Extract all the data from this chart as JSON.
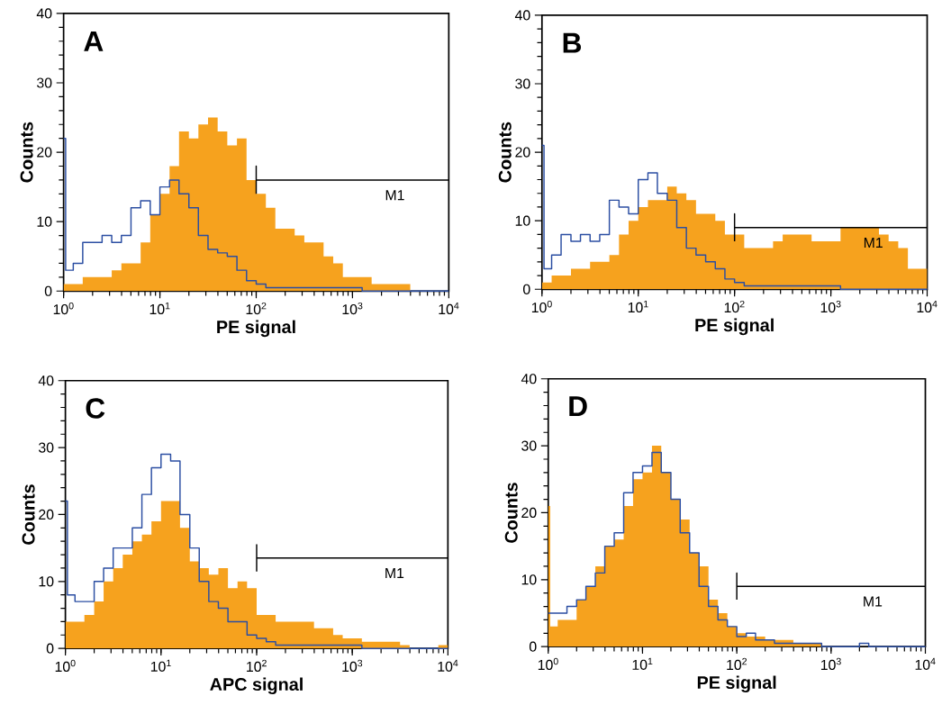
{
  "chart_data": [
    {
      "type": "area",
      "title": "A",
      "xlabel": "PE signal",
      "ylabel": "Counts",
      "log": "x",
      "xlim": [
        1,
        10000
      ],
      "ylim": [
        0,
        40
      ],
      "xticks": [
        {
          "value": 1,
          "label": "10$^{0}$"
        },
        {
          "value": 10,
          "label": "10$^{1}$"
        },
        {
          "value": 100,
          "label": "10$^{2}$"
        },
        {
          "value": 1000,
          "label": "10$^{3}$"
        },
        {
          "value": 10000,
          "label": "10$^{4}$"
        }
      ],
      "yticks": [
        0,
        10,
        20,
        30,
        40
      ],
      "annotations": [
        "M1"
      ],
      "series": [
        {
          "type": "line",
          "color": "#000000",
          "x": [
            100,
            100,
            100,
            10000
          ],
          "values": [
            14,
            18,
            16,
            16
          ]
        },
        {
          "color": "#f6a21e",
          "x": [
            1,
            1.26,
            1.58,
            2,
            2.51,
            3.16,
            3.98,
            5.01,
            6.31,
            7.94,
            10,
            12.6,
            15.8,
            20,
            25.1,
            31.6,
            39.8,
            50.1,
            63.1,
            79.4,
            100,
            126,
            158,
            200,
            251,
            316,
            398,
            501,
            631,
            794,
            1000,
            1260,
            1580,
            2000,
            2510,
            3160,
            3980,
            5010,
            6310,
            7940,
            10000
          ],
          "values": [
            1,
            1,
            2,
            2,
            2,
            3,
            4,
            4,
            7,
            11,
            14,
            18,
            23,
            22,
            24,
            25,
            23,
            21,
            22,
            16,
            14,
            12,
            9,
            9,
            8,
            7,
            7,
            5,
            4,
            2,
            2,
            2,
            1,
            1,
            1,
            1,
            0,
            0,
            0,
            0,
            0
          ]
        },
        {
          "type": "step",
          "color": "#2b4ea2",
          "x": [
            1,
            1.05,
            1.26,
            1.58,
            2,
            2.51,
            3.16,
            3.98,
            5.01,
            6.31,
            7.94,
            10,
            12.6,
            15.8,
            20,
            25.1,
            31.6,
            39.8,
            50.1,
            63.1,
            79.4,
            100,
            126,
            158,
            200,
            251,
            316,
            398,
            501,
            631,
            794,
            1000,
            1260,
            1580,
            2000,
            2510,
            3160,
            3980,
            5010,
            6310,
            7940,
            10000
          ],
          "values": [
            22,
            3,
            4,
            7,
            7,
            8,
            7,
            8,
            12,
            13,
            11,
            15,
            16,
            14,
            12,
            8,
            6,
            5.5,
            5,
            3,
            1.5,
            1,
            0.5,
            0.5,
            0.5,
            0.5,
            0.5,
            0.5,
            0.5,
            0.5,
            0.5,
            0.5,
            0,
            0,
            0,
            0,
            0,
            0,
            0,
            0,
            0,
            0
          ]
        }
      ]
    },
    {
      "type": "area",
      "title": "B",
      "xlabel": "PE signal",
      "ylabel": "Counts",
      "log": "x",
      "xlim": [
        1,
        10000
      ],
      "ylim": [
        0,
        40
      ],
      "xticks": [
        {
          "value": 1,
          "label": "10$^{0}$"
        },
        {
          "value": 10,
          "label": "10$^{1}$"
        },
        {
          "value": 100,
          "label": "10$^{2}$"
        },
        {
          "value": 1000,
          "label": "10$^{3}$"
        },
        {
          "value": 10000,
          "label": "10$^{4}$"
        }
      ],
      "yticks": [
        0,
        10,
        20,
        30,
        40
      ],
      "annotations": [
        "M1"
      ],
      "series": [
        {
          "type": "line",
          "color": "#000000",
          "x": [
            100,
            100,
            100,
            10000
          ],
          "values": [
            7,
            11,
            9,
            9
          ]
        },
        {
          "color": "#f6a21e",
          "x": [
            1,
            1.26,
            1.58,
            2,
            2.51,
            3.16,
            3.98,
            5.01,
            6.31,
            7.94,
            10,
            12.6,
            15.8,
            20,
            25.1,
            31.6,
            39.8,
            50.1,
            63.1,
            79.4,
            100,
            126,
            158,
            200,
            251,
            316,
            398,
            501,
            631,
            794,
            1000,
            1260,
            1580,
            2000,
            2510,
            3160,
            3980,
            5010,
            6310,
            7940,
            10000
          ],
          "values": [
            1,
            2,
            2,
            3,
            3,
            4,
            4,
            5,
            8,
            10,
            12,
            13,
            13,
            15,
            14,
            13,
            11,
            11,
            10,
            8,
            8,
            6,
            6,
            6,
            7,
            8,
            8,
            8,
            7,
            7,
            7,
            9,
            9,
            9,
            9,
            8,
            7,
            6,
            3,
            3,
            5
          ]
        },
        {
          "type": "step",
          "color": "#2b4ea2",
          "x": [
            1,
            1.05,
            1.26,
            1.58,
            2,
            2.51,
            3.16,
            3.98,
            5.01,
            6.31,
            7.94,
            10,
            12.6,
            15.8,
            20,
            25.1,
            31.6,
            39.8,
            50.1,
            63.1,
            79.4,
            100,
            126,
            158,
            200,
            251,
            316,
            398,
            501,
            631,
            794,
            1000,
            1260,
            1580,
            2000,
            2510,
            3160,
            3980,
            5010,
            6310,
            7940,
            10000
          ],
          "values": [
            21,
            3,
            5,
            8,
            7,
            8,
            7,
            8,
            13,
            12,
            11,
            16,
            17,
            14,
            13,
            9,
            6,
            5,
            4,
            3,
            1.5,
            1,
            0.5,
            0.5,
            0.5,
            0.5,
            0.5,
            0.5,
            0.5,
            0.5,
            0.5,
            0.5,
            0,
            0,
            0,
            0,
            0,
            0,
            0,
            0,
            0,
            0
          ]
        }
      ]
    },
    {
      "type": "area",
      "title": "C",
      "xlabel": "APC signal",
      "ylabel": "Counts",
      "log": "x",
      "xlim": [
        1,
        10000
      ],
      "ylim": [
        0,
        40
      ],
      "xticks": [
        {
          "value": 1,
          "label": "10$^{0}$"
        },
        {
          "value": 10,
          "label": "10$^{1}$"
        },
        {
          "value": 100,
          "label": "10$^{2}$"
        },
        {
          "value": 1000,
          "label": "10$^{3}$"
        },
        {
          "value": 10000,
          "label": "10$^{4}$"
        }
      ],
      "yticks": [
        0,
        10,
        20,
        30,
        40
      ],
      "annotations": [
        "M1"
      ],
      "series": [
        {
          "type": "line",
          "color": "#000000",
          "x": [
            100,
            100,
            100,
            10000
          ],
          "values": [
            11.5,
            15.5,
            13.5,
            13.5
          ]
        },
        {
          "color": "#f6a21e",
          "x": [
            1,
            1.26,
            1.58,
            2,
            2.51,
            3.16,
            3.98,
            5.01,
            6.31,
            7.94,
            10,
            12.6,
            15.8,
            20,
            25.1,
            31.6,
            39.8,
            50.1,
            63.1,
            79.4,
            100,
            126,
            158,
            200,
            251,
            316,
            398,
            501,
            631,
            794,
            1000,
            1260,
            1580,
            2000,
            2510,
            3160,
            3980,
            5010,
            6310,
            7940,
            10000
          ],
          "values": [
            4,
            4,
            5,
            7,
            10,
            12,
            14,
            16,
            17,
            19,
            22,
            22,
            18,
            13,
            12,
            11,
            12,
            9,
            10,
            9,
            5,
            5,
            4,
            4,
            4,
            4,
            3,
            3,
            2,
            1.5,
            1.5,
            1,
            1,
            1,
            1,
            0.5,
            0,
            0,
            0,
            0.5,
            0
          ]
        },
        {
          "type": "step",
          "color": "#2b4ea2",
          "x": [
            1,
            1.05,
            1.26,
            1.58,
            2,
            2.51,
            3.16,
            3.98,
            5.01,
            6.31,
            7.94,
            10,
            12.6,
            15.8,
            20,
            25.1,
            31.6,
            39.8,
            50.1,
            63.1,
            79.4,
            100,
            126,
            158,
            200,
            251,
            316,
            398,
            501,
            631,
            794,
            1000,
            1260,
            1580,
            2000,
            2510,
            3160,
            3980,
            5010,
            6310,
            7940,
            10000
          ],
          "values": [
            22,
            8,
            7,
            7,
            10,
            12,
            15,
            15,
            18,
            23,
            27,
            29,
            28,
            20,
            15,
            10,
            7,
            6,
            4,
            4,
            2,
            1.5,
            1,
            0.5,
            0.5,
            0.5,
            0.5,
            0.5,
            0.5,
            0.5,
            0.5,
            0.5,
            0,
            0,
            0,
            0,
            0,
            0,
            0,
            0,
            0,
            0
          ]
        }
      ]
    },
    {
      "type": "area",
      "title": "D",
      "xlabel": "PE signal",
      "ylabel": "Counts",
      "log": "x",
      "xlim": [
        1,
        10000
      ],
      "ylim": [
        0,
        40
      ],
      "xticks": [
        {
          "value": 1,
          "label": "10$^{0}$"
        },
        {
          "value": 10,
          "label": "10$^{1}$"
        },
        {
          "value": 100,
          "label": "10$^{2}$"
        },
        {
          "value": 1000,
          "label": "10$^{3}$"
        },
        {
          "value": 10000,
          "label": "10$^{4}$"
        }
      ],
      "yticks": [
        0,
        10,
        20,
        30,
        40
      ],
      "annotations": [
        "M1"
      ],
      "series": [
        {
          "type": "line",
          "color": "#000000",
          "x": [
            100,
            100,
            100,
            10000
          ],
          "values": [
            7,
            11,
            9,
            9
          ]
        },
        {
          "color": "#f6a21e",
          "x": [
            1,
            1.05,
            1.26,
            1.58,
            2,
            2.51,
            3.16,
            3.98,
            5.01,
            6.31,
            7.94,
            10,
            12.6,
            15.8,
            20,
            25.1,
            31.6,
            39.8,
            50.1,
            63.1,
            79.4,
            100,
            126,
            158,
            200,
            251,
            316,
            398,
            501,
            631,
            794,
            1000,
            1260,
            1580,
            2000,
            2510,
            3160,
            3980,
            5010,
            6310,
            7940,
            10000
          ],
          "values": [
            21,
            3,
            4,
            4,
            7,
            9,
            12,
            15,
            16,
            21,
            25,
            26,
            30,
            26,
            22,
            19,
            14,
            12,
            7,
            5,
            3,
            2,
            1.5,
            1.5,
            1,
            1,
            1,
            0.5,
            0.5,
            0.5,
            0,
            0,
            0,
            0,
            0,
            0,
            0,
            0,
            0,
            0,
            0,
            0.5
          ]
        },
        {
          "type": "step",
          "color": "#2b4ea2",
          "x": [
            1,
            1.26,
            1.58,
            2,
            2.51,
            3.16,
            3.98,
            5.01,
            6.31,
            7.94,
            10,
            12.6,
            15.8,
            20,
            25.1,
            31.6,
            39.8,
            50.1,
            63.1,
            79.4,
            100,
            126,
            158,
            200,
            251,
            316,
            398,
            501,
            631,
            794,
            1000,
            1260,
            1580,
            2000,
            2510,
            3160,
            3980,
            5010,
            6310,
            7940,
            10000
          ],
          "values": [
            5,
            5,
            6,
            7,
            9,
            11,
            15,
            17,
            23,
            26,
            27,
            29,
            26,
            22,
            17,
            14,
            9,
            6,
            4,
            3,
            1.5,
            2,
            1,
            1,
            0.5,
            0.5,
            0.5,
            0.5,
            0.5,
            0,
            0,
            0,
            0,
            0.5,
            0,
            0,
            0,
            0,
            0,
            0,
            0
          ]
        }
      ]
    }
  ]
}
